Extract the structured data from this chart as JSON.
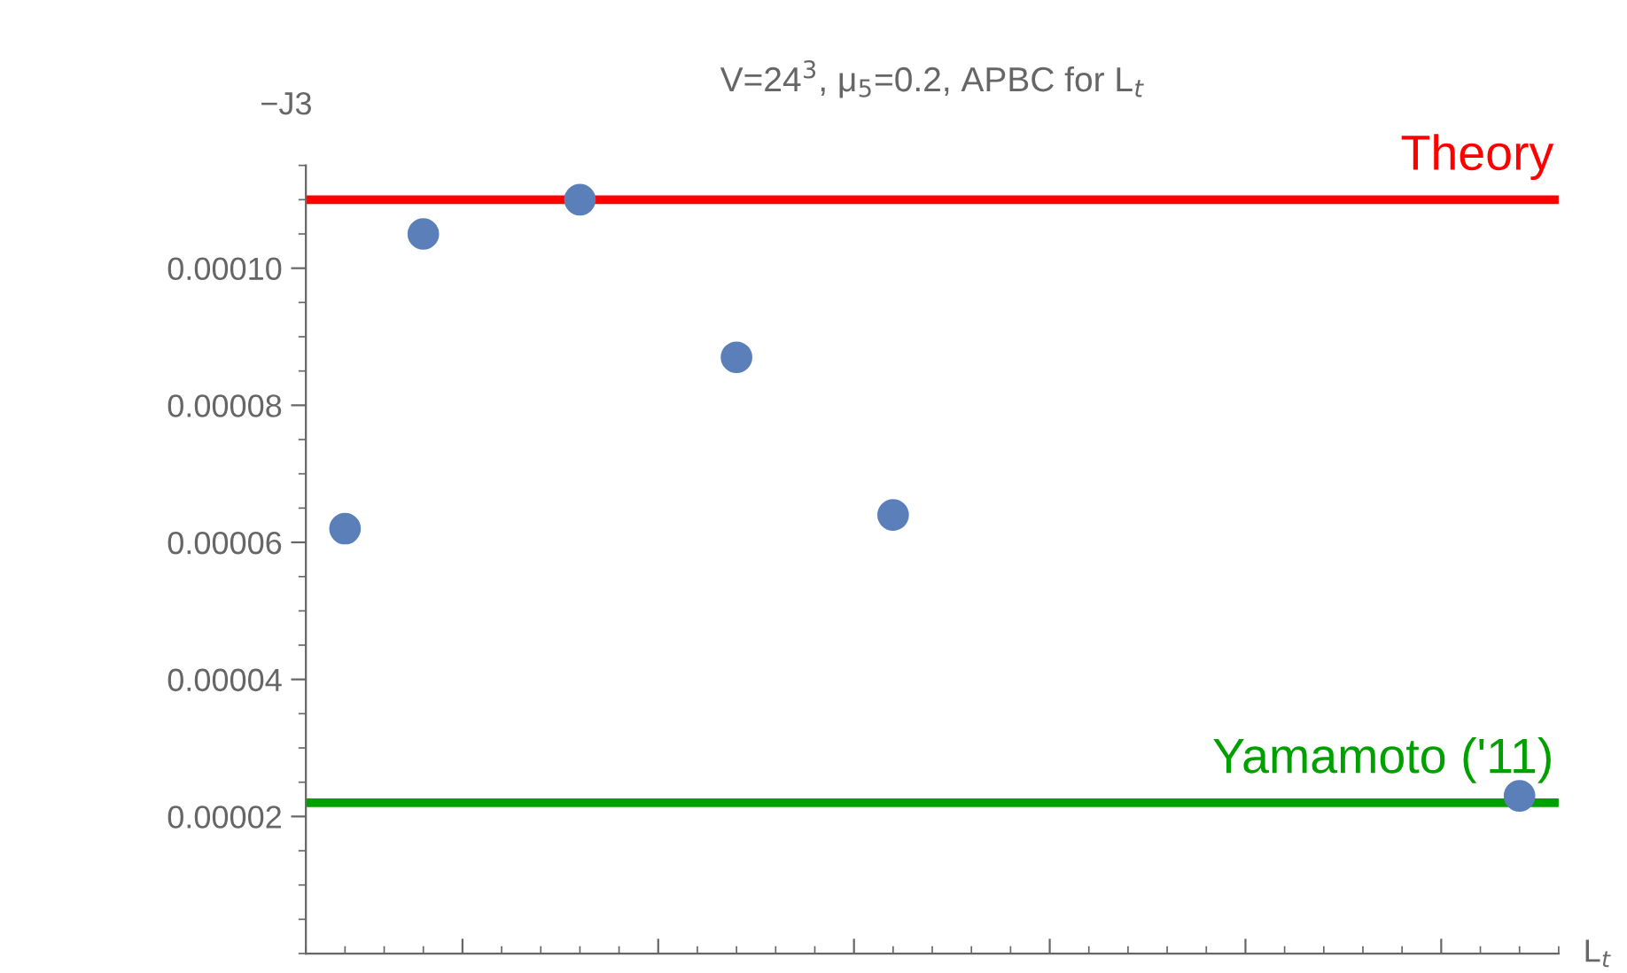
{
  "chart_data": {
    "type": "scatter",
    "title": "V=24$^{3}$, μ$_{5}$=0.2, APBC for L$_{t}$",
    "xlabel": "L$_{t}$",
    "ylabel": "−J3",
    "categories": [
      null,
      null,
      null,
      null,
      null,
      null,
      null,
      null,
      null,
      null,
      null,
      null,
      null,
      null,
      null,
      null
    ],
    "series": [
      {
        "color": "#5b7fb8",
        "values": [
          6.2e-05,
          0.000105,
          null,
          0.00011,
          null,
          8.7e-05,
          null,
          6.4e-05,
          null,
          null,
          null,
          null,
          null,
          null,
          null,
          2.3e-05
        ]
      }
    ],
    "ylim": [
      0,
      0.000115
    ],
    "yticks": [
      {
        "value": 2e-05,
        "label": "0.00002"
      },
      {
        "value": 4e-05,
        "label": "0.00004"
      },
      {
        "value": 6e-05,
        "label": "0.00006"
      },
      {
        "value": 8e-05,
        "label": "0.00008"
      },
      {
        "value": 0.0001,
        "label": "0.00010"
      }
    ],
    "ref_lines": [
      {
        "axis": "y",
        "value": 0.00011,
        "label": "Theory",
        "color": "#ff0000"
      },
      {
        "axis": "y",
        "value": 2.2e-05,
        "label": "Yamamoto ('11)",
        "color": "#00a000"
      }
    ],
    "tick_labels": "y",
    "marker": "circle",
    "grid": false,
    "legend": false
  }
}
